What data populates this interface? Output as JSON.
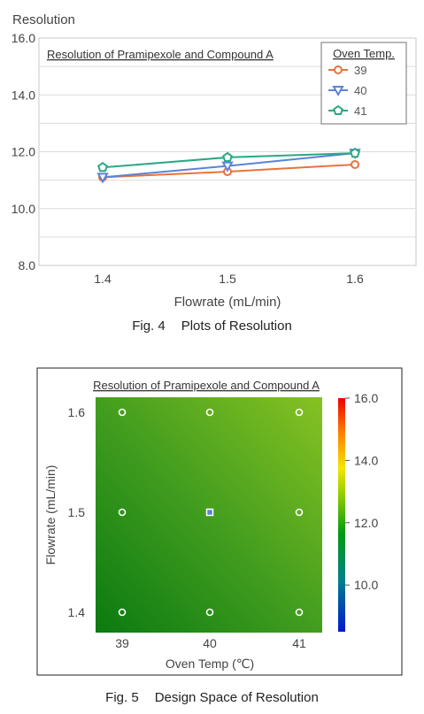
{
  "figures": [
    {
      "caption_number": "Fig. 4",
      "caption_text": "Plots of Resolution",
      "chart_data": {
        "type": "line",
        "title": "Resolution of Pramipexole and Compound A",
        "xlabel": "Flowrate (mL/min)",
        "ylabel": "Resolution",
        "categories": [
          "1.4",
          "1.5",
          "1.6"
        ],
        "x_tick_labels": [
          "1.4",
          "1.5",
          "1.6"
        ],
        "y_tick_labels": [
          "16.0",
          "14.0",
          "12.0",
          "10.0",
          "8.0"
        ],
        "ylim": [
          8.0,
          16.0
        ],
        "grid": true,
        "legend_title": "Oven Temp.",
        "legend_position": "top-right",
        "series": [
          {
            "name": "39",
            "values": [
              11.1,
              11.3,
              11.55
            ],
            "color": "#e8733a",
            "marker": "circle"
          },
          {
            "name": "40",
            "values": [
              11.1,
              11.5,
              11.95
            ],
            "color": "#5b84d6",
            "marker": "triangle-down"
          },
          {
            "name": "41",
            "values": [
              11.45,
              11.8,
              11.95
            ],
            "color": "#2aa884",
            "marker": "pentagon"
          }
        ]
      }
    },
    {
      "caption_number": "Fig. 5",
      "caption_text": "Design Space of Resolution",
      "chart_data": {
        "type": "heatmap",
        "title": "Resolution of Pramipexole and Compound A",
        "xlabel": "Oven Temp (℃)",
        "ylabel": "Flowrate (mL/min)",
        "x_tick_labels": [
          "39",
          "40",
          "41"
        ],
        "y_tick_labels": [
          "1.6",
          "1.5",
          "1.4"
        ],
        "x_values": [
          39,
          40,
          41
        ],
        "y_values": [
          1.4,
          1.5,
          1.6
        ],
        "z_values": [
          [
            11.1,
            11.1,
            11.45
          ],
          [
            11.3,
            11.5,
            11.8
          ],
          [
            11.55,
            11.95,
            11.95
          ]
        ],
        "colorbar_range": [
          8.5,
          16.0
        ],
        "colorbar_tick_labels": [
          "16.0",
          "14.0",
          "12.0",
          "10.0"
        ],
        "colorbar_ticks": [
          16.0,
          14.0,
          12.0,
          10.0
        ],
        "colorscale": [
          "#0000cc",
          "#008a8a",
          "#00a000",
          "#8fd000",
          "#f0e000",
          "#ff7a00",
          "#ee0000"
        ],
        "center_point": [
          40,
          1.5
        ]
      }
    }
  ]
}
